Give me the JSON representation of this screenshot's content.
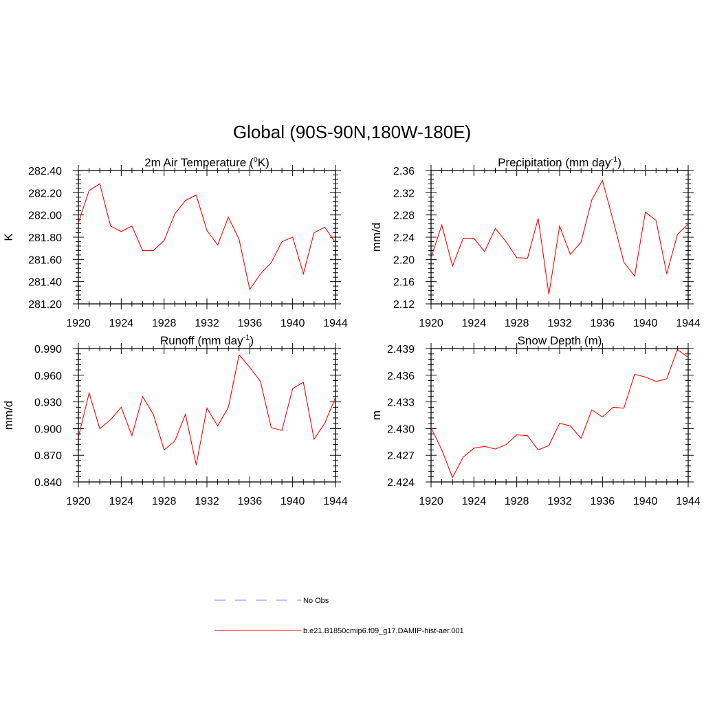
{
  "title": "Global (90S-90N,180W-180E)",
  "legend": [
    {
      "label": "No Obs",
      "color": "#9999ff",
      "dash": true
    },
    {
      "label": "b.e21.B1850cmip6.f09_g17.DAMIP-hist-aer.001",
      "color": "#ff3333",
      "dash": false
    }
  ],
  "chart_data": [
    {
      "type": "line",
      "title": "2m Air Temperature (°K)",
      "title_parts": [
        "2m Air Temperature (",
        "o",
        "K)"
      ],
      "ylabel": "K",
      "xlim": [
        1920,
        1944
      ],
      "ylim": [
        281.2,
        282.4
      ],
      "xticks": [
        1920,
        1924,
        1928,
        1932,
        1936,
        1940,
        1944
      ],
      "yticks": [
        281.2,
        281.4,
        281.6,
        281.8,
        282.0,
        282.2,
        282.4
      ],
      "ytick_labels": [
        "281.20",
        "281.40",
        "281.60",
        "281.80",
        "282.00",
        "282.20",
        "282.40"
      ],
      "x": [
        1920,
        1921,
        1922,
        1923,
        1924,
        1925,
        1926,
        1927,
        1928,
        1929,
        1930,
        1931,
        1932,
        1933,
        1934,
        1935,
        1936,
        1937,
        1938,
        1939,
        1940,
        1941,
        1942,
        1943,
        1944
      ],
      "series": [
        {
          "name": "b.e21.B1850cmip6.f09_g17.DAMIP-hist-aer.001",
          "color": "#ff0000",
          "values": [
            281.93,
            282.22,
            282.28,
            281.9,
            281.85,
            281.9,
            281.68,
            281.68,
            281.77,
            282.01,
            282.13,
            282.18,
            281.86,
            281.73,
            281.98,
            281.78,
            281.33,
            281.47,
            281.57,
            281.76,
            281.8,
            281.47,
            281.84,
            281.89,
            281.75
          ]
        }
      ]
    },
    {
      "type": "line",
      "title": "Precipitation (mm day-1)",
      "title_parts": [
        "Precipitation (mm day",
        "-1",
        ")"
      ],
      "ylabel": "mm/d",
      "xlim": [
        1920,
        1944
      ],
      "ylim": [
        2.12,
        2.36
      ],
      "xticks": [
        1920,
        1924,
        1928,
        1932,
        1936,
        1940,
        1944
      ],
      "yticks": [
        2.12,
        2.16,
        2.2,
        2.24,
        2.28,
        2.32,
        2.36
      ],
      "ytick_labels": [
        "2.12",
        "2.16",
        "2.20",
        "2.24",
        "2.28",
        "2.32",
        "2.36"
      ],
      "x": [
        1920,
        1921,
        1922,
        1923,
        1924,
        1925,
        1926,
        1927,
        1928,
        1929,
        1930,
        1931,
        1932,
        1933,
        1934,
        1935,
        1936,
        1937,
        1938,
        1939,
        1940,
        1941,
        1942,
        1943,
        1944
      ],
      "series": [
        {
          "name": "b.e21.B1850cmip6.f09_g17.DAMIP-hist-aer.001",
          "color": "#ff0000",
          "values": [
            2.203,
            2.262,
            2.188,
            2.238,
            2.238,
            2.214,
            2.256,
            2.232,
            2.203,
            2.202,
            2.274,
            2.137,
            2.26,
            2.209,
            2.231,
            2.307,
            2.342,
            2.27,
            2.195,
            2.17,
            2.285,
            2.27,
            2.174,
            2.245,
            2.264
          ]
        }
      ]
    },
    {
      "type": "line",
      "title": "Runoff (mm day-1)",
      "title_parts": [
        "Runoff (mm day",
        "-1",
        ")"
      ],
      "ylabel": "mm/d",
      "xlim": [
        1920,
        1944
      ],
      "ylim": [
        0.84,
        0.99
      ],
      "xticks": [
        1920,
        1924,
        1928,
        1932,
        1936,
        1940,
        1944
      ],
      "yticks": [
        0.84,
        0.87,
        0.9,
        0.93,
        0.96,
        0.99
      ],
      "ytick_labels": [
        "0.840",
        "0.870",
        "0.900",
        "0.930",
        "0.960",
        "0.990"
      ],
      "x": [
        1920,
        1921,
        1922,
        1923,
        1924,
        1925,
        1926,
        1927,
        1928,
        1929,
        1930,
        1931,
        1932,
        1933,
        1934,
        1935,
        1936,
        1937,
        1938,
        1939,
        1940,
        1941,
        1942,
        1943,
        1944
      ],
      "series": [
        {
          "name": "b.e21.B1850cmip6.f09_g17.DAMIP-hist-aer.001",
          "color": "#ff0000",
          "values": [
            0.89,
            0.94,
            0.9,
            0.91,
            0.924,
            0.892,
            0.936,
            0.916,
            0.876,
            0.886,
            0.916,
            0.859,
            0.923,
            0.903,
            0.924,
            0.983,
            0.969,
            0.953,
            0.901,
            0.898,
            0.945,
            0.952,
            0.888,
            0.906,
            0.935
          ]
        }
      ]
    },
    {
      "type": "line",
      "title": "Snow Depth (m)",
      "title_parts": [
        "Snow Depth (m)",
        "",
        ""
      ],
      "ylabel": "m",
      "xlim": [
        1920,
        1944
      ],
      "ylim": [
        2.424,
        2.439
      ],
      "xticks": [
        1920,
        1924,
        1928,
        1932,
        1936,
        1940,
        1944
      ],
      "yticks": [
        2.424,
        2.427,
        2.43,
        2.433,
        2.436,
        2.439
      ],
      "ytick_labels": [
        "2.424",
        "2.427",
        "2.430",
        "2.433",
        "2.436",
        "2.439"
      ],
      "x": [
        1920,
        1921,
        1922,
        1923,
        1924,
        1925,
        1926,
        1927,
        1928,
        1929,
        1930,
        1931,
        1932,
        1933,
        1934,
        1935,
        1936,
        1937,
        1938,
        1939,
        1940,
        1941,
        1942,
        1943,
        1944
      ],
      "series": [
        {
          "name": "b.e21.B1850cmip6.f09_g17.DAMIP-hist-aer.001",
          "color": "#ff0000",
          "values": [
            2.4301,
            2.4276,
            2.4245,
            2.4268,
            2.4278,
            2.428,
            2.4277,
            2.4282,
            2.4293,
            2.4292,
            2.4276,
            2.4281,
            2.4306,
            2.4303,
            2.4289,
            2.4321,
            2.4313,
            2.4324,
            2.4323,
            2.4361,
            2.4358,
            2.4353,
            2.4356,
            2.4389,
            2.438
          ]
        }
      ]
    }
  ]
}
